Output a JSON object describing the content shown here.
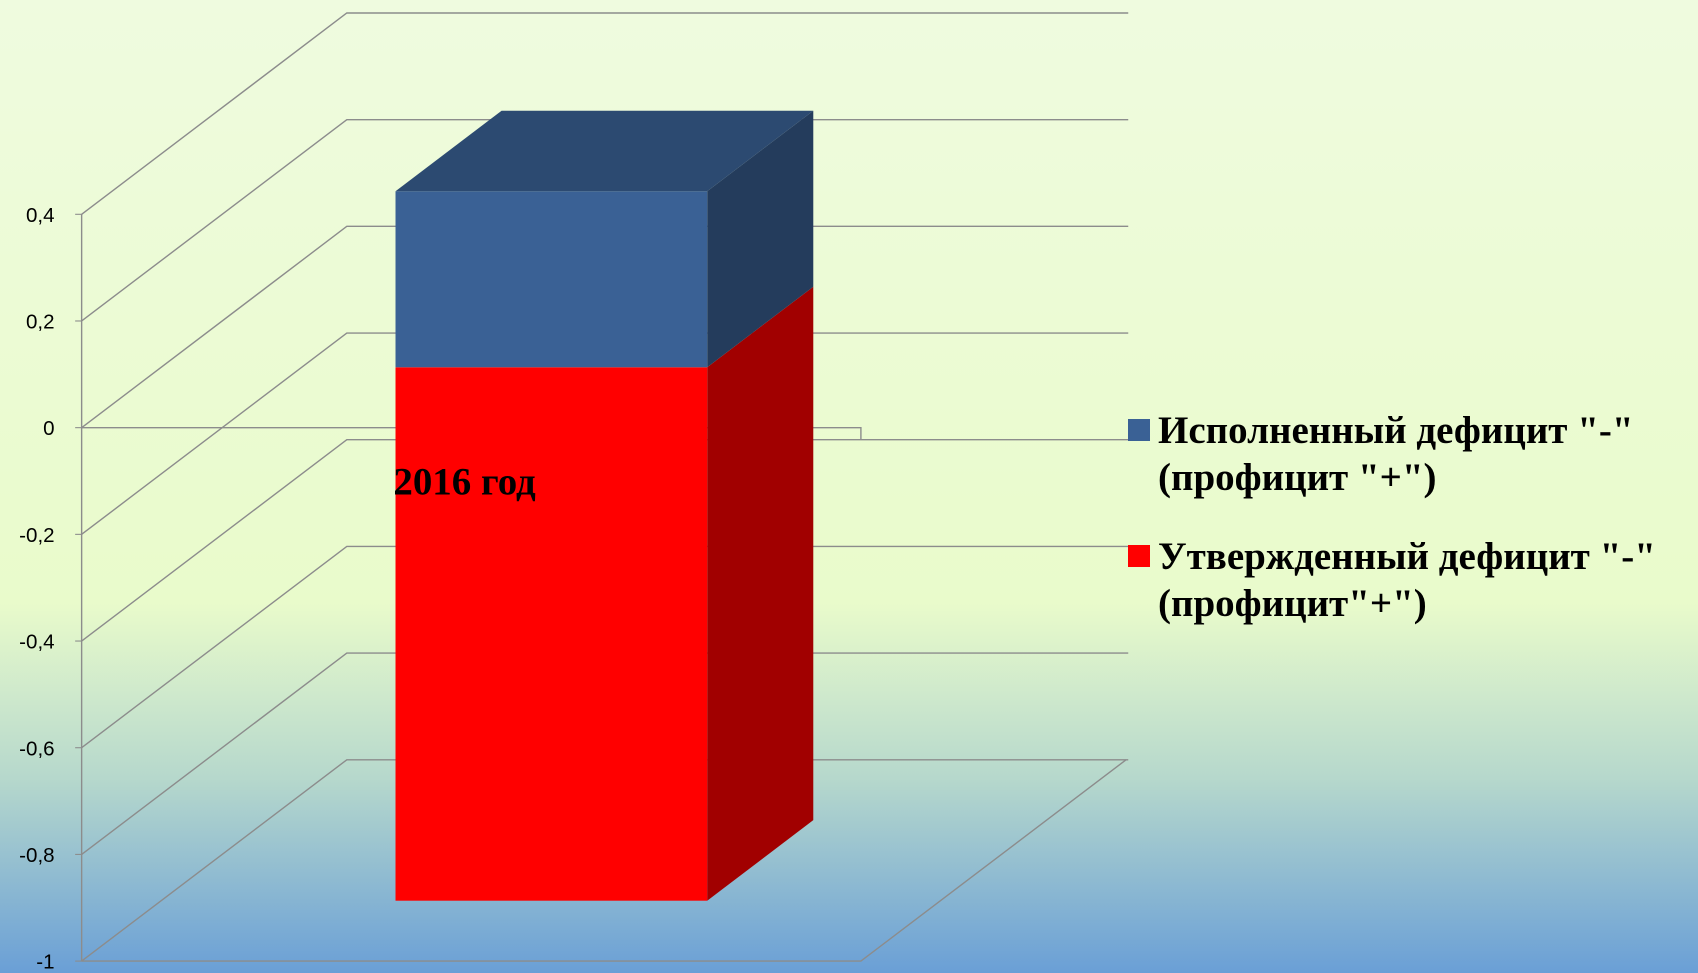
{
  "chart_data": {
    "type": "bar3d_stacked",
    "categories": [
      "2016 год"
    ],
    "series": [
      {
        "name": "Исполненный дефицит \"-\" (профицит \"+\")",
        "color": "#3a6195",
        "values": [
          0.33
        ]
      },
      {
        "name": "Утвержденный дефицит \"-\" (профицит\"+\")",
        "color": "#ff0000",
        "values": [
          -1.0
        ]
      }
    ],
    "ylim": [
      -1,
      0.4
    ],
    "yticks": [
      {
        "value": -1,
        "label": "-1"
      },
      {
        "value": -0.8,
        "label": "-0,8"
      },
      {
        "value": -0.6,
        "label": "-0,6"
      },
      {
        "value": -0.4,
        "label": "-0,4"
      },
      {
        "value": -0.2,
        "label": "-0,2"
      },
      0,
      {
        "value": 0.2,
        "label": "0,2"
      },
      {
        "value": 0.4,
        "label": "0,4"
      }
    ],
    "grid": true,
    "legend": "right"
  }
}
